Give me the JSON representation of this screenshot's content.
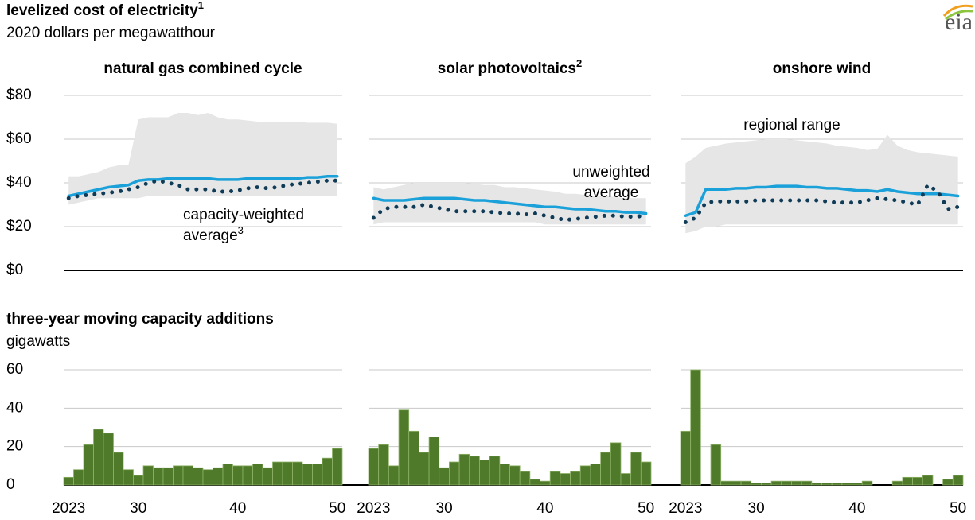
{
  "header": {
    "title": "levelized cost of electricity",
    "title_note": "1",
    "subtitle": "2020 dollars per megawatthour",
    "logo": "eia"
  },
  "lower_header": {
    "title": "three-year moving capacity additions",
    "subtitle": "gigawatts"
  },
  "chart_data": [
    {
      "type": "line",
      "title": "natural gas combined cycle",
      "xlim": [
        2022.5,
        2050.5
      ],
      "ylim": [
        0,
        80
      ],
      "yticks": [
        {
          "value": 0,
          "label": "$0"
        },
        {
          "value": 20,
          "label": "$20"
        },
        {
          "value": 40,
          "label": "$40"
        },
        {
          "value": 60,
          "label": "$60"
        },
        {
          "value": 80,
          "label": "$80"
        }
      ],
      "grid": true,
      "x": [
        2023,
        2024,
        2025,
        2026,
        2027,
        2028,
        2029,
        2030,
        2031,
        2032,
        2033,
        2034,
        2035,
        2036,
        2037,
        2038,
        2039,
        2040,
        2041,
        2042,
        2043,
        2044,
        2045,
        2046,
        2047,
        2048,
        2049,
        2050
      ],
      "range": {
        "color": "#e6e6e6",
        "upper": [
          43,
          43,
          44,
          45,
          47,
          48,
          48,
          69,
          70,
          70,
          70,
          72,
          72,
          71,
          72,
          70,
          69,
          69,
          68.5,
          68,
          68,
          68,
          68,
          68,
          67.5,
          67.5,
          67.5,
          67
        ],
        "lower": [
          30,
          31,
          32,
          33,
          33,
          33,
          33,
          33,
          34,
          34,
          34,
          34,
          34,
          34,
          34,
          34,
          34,
          34,
          34,
          34,
          34,
          34,
          34,
          34,
          34,
          34,
          34,
          34
        ]
      },
      "series": [
        {
          "color": "#1ba1d9",
          "style": "solid",
          "values": [
            34,
            35,
            36,
            37,
            38,
            38.5,
            39,
            41,
            41.5,
            41.5,
            42,
            42,
            42,
            42,
            42,
            41.5,
            41.5,
            41.5,
            42,
            42,
            42,
            42,
            42,
            42,
            42.5,
            42.5,
            43,
            43
          ]
        },
        {
          "color": "#0f3b57",
          "style": "dotted",
          "values": [
            33,
            34,
            34.5,
            35,
            35.5,
            36,
            37,
            38,
            40,
            41,
            40,
            39,
            37,
            37,
            37,
            36,
            36,
            36.5,
            37.5,
            38,
            37.5,
            38,
            39,
            39.5,
            40,
            40.5,
            41,
            41
          ]
        }
      ],
      "annotations": [
        {
          "lines": [
            "capacity-weighted",
            "average"
          ],
          "note": "3",
          "color": "#0f3b57"
        }
      ]
    },
    {
      "type": "line",
      "title": "solar photovoltaics",
      "title_note": "2",
      "xlim": [
        2022.5,
        2050.5
      ],
      "ylim": [
        0,
        80
      ],
      "yticks": [
        0,
        20,
        40,
        60,
        80
      ],
      "grid": true,
      "x": [
        2023,
        2024,
        2025,
        2026,
        2027,
        2028,
        2029,
        2030,
        2031,
        2032,
        2033,
        2034,
        2035,
        2036,
        2037,
        2038,
        2039,
        2040,
        2041,
        2042,
        2043,
        2044,
        2045,
        2046,
        2047,
        2048,
        2049,
        2050
      ],
      "range": {
        "color": "#e6e6e6",
        "upper": [
          38,
          37,
          38,
          39,
          40,
          40,
          40,
          40,
          40,
          40,
          39.5,
          39,
          39,
          38,
          38,
          37.5,
          37,
          36.5,
          36,
          35,
          35,
          34.5,
          34,
          34,
          33.5,
          33,
          33,
          33
        ],
        "lower": [
          21,
          22,
          22,
          22,
          22,
          22,
          22,
          22,
          22,
          22,
          22,
          22,
          22,
          22,
          22,
          22,
          22,
          21,
          21,
          21,
          21,
          21,
          21,
          21,
          21,
          21,
          21,
          21
        ]
      },
      "series": [
        {
          "color": "#1ba1d9",
          "style": "solid",
          "values": [
            33,
            32,
            32,
            32,
            32.5,
            33,
            33,
            33,
            33,
            32.5,
            32,
            32,
            31.5,
            31,
            30.5,
            30,
            29.5,
            29,
            29,
            28.5,
            28,
            28,
            27.5,
            27,
            27,
            26.5,
            26.5,
            26
          ]
        },
        {
          "color": "#0f3b57",
          "style": "dotted",
          "values": [
            24,
            28,
            29,
            29,
            29,
            30,
            29,
            28,
            27,
            27,
            27,
            27,
            26.5,
            26,
            26,
            25.5,
            26,
            25,
            24,
            23,
            23.5,
            24,
            24.5,
            25,
            25,
            24.5,
            24.5,
            25
          ]
        }
      ],
      "annotations": [
        {
          "lines": [
            "unweighted",
            "average"
          ],
          "color": "#1ba1d9"
        }
      ]
    },
    {
      "type": "line",
      "title": "onshore wind",
      "xlim": [
        2022.5,
        2050.5
      ],
      "ylim": [
        0,
        80
      ],
      "yticks": [
        0,
        20,
        40,
        60,
        80
      ],
      "grid": true,
      "x": [
        2023,
        2024,
        2025,
        2026,
        2027,
        2028,
        2029,
        2030,
        2031,
        2032,
        2033,
        2034,
        2035,
        2036,
        2037,
        2038,
        2039,
        2040,
        2041,
        2042,
        2043,
        2044,
        2045,
        2046,
        2047,
        2048,
        2049,
        2050
      ],
      "range": {
        "color": "#e6e6e6",
        "upper": [
          49,
          52,
          56,
          57,
          58,
          58.5,
          59,
          59.5,
          60,
          60,
          60,
          59.5,
          59,
          58.5,
          58,
          57,
          56.5,
          56,
          55,
          55.5,
          62,
          57,
          55,
          54,
          53.5,
          53,
          52.5,
          52
        ],
        "lower": [
          17,
          18,
          20,
          20,
          21,
          21,
          21,
          21,
          21,
          21,
          21,
          21,
          21,
          21,
          21,
          21,
          21,
          21,
          21,
          21,
          21,
          21,
          21,
          21,
          21,
          21,
          21,
          21
        ]
      },
      "series": [
        {
          "color": "#1ba1d9",
          "style": "solid",
          "values": [
            25,
            26.5,
            37,
            37,
            37,
            37.5,
            37.5,
            38,
            38,
            38.5,
            38.5,
            38.5,
            38,
            38,
            37.5,
            37.5,
            37,
            36.5,
            36.5,
            36,
            37,
            36,
            35.5,
            35,
            35,
            35,
            34.5,
            34
          ]
        },
        {
          "color": "#0f3b57",
          "style": "dotted",
          "values": [
            22,
            24,
            31,
            31.5,
            31.5,
            31.5,
            31.5,
            32,
            32,
            32,
            32,
            32,
            32,
            32,
            31.5,
            31,
            31,
            31,
            32,
            33,
            32.5,
            32,
            31,
            30,
            39,
            36,
            28,
            29
          ]
        }
      ],
      "annotations": [
        {
          "lines": [
            "regional range"
          ],
          "color": "#8c8c8c"
        }
      ]
    },
    {
      "type": "bar",
      "color": "#4f7a2a",
      "xlim": [
        2022.5,
        2050.5
      ],
      "ylim": [
        0,
        60
      ],
      "yticks": [
        0,
        20,
        40,
        60
      ],
      "grid": true,
      "xticks": [
        2023,
        {
          "value": 2030,
          "label": "30"
        },
        {
          "value": 2040,
          "label": "40"
        },
        {
          "value": 2050,
          "label": "50"
        }
      ],
      "x": [
        2023,
        2024,
        2025,
        2026,
        2027,
        2028,
        2029,
        2030,
        2031,
        2032,
        2033,
        2034,
        2035,
        2036,
        2037,
        2038,
        2039,
        2040,
        2041,
        2042,
        2043,
        2044,
        2045,
        2046,
        2047,
        2048,
        2049,
        2050
      ],
      "values": [
        4,
        8,
        21,
        29,
        27,
        17,
        8,
        5,
        10,
        9,
        9,
        10,
        10,
        9,
        8,
        9,
        11,
        10,
        10,
        11,
        9,
        12,
        12,
        12,
        11,
        11,
        14,
        19
      ]
    },
    {
      "type": "bar",
      "color": "#4f7a2a",
      "xlim": [
        2022.5,
        2050.5
      ],
      "ylim": [
        0,
        60
      ],
      "yticks": [
        0,
        20,
        40,
        60
      ],
      "grid": true,
      "xticks": [
        2023,
        {
          "value": 2030,
          "label": "30"
        },
        {
          "value": 2040,
          "label": "40"
        },
        {
          "value": 2050,
          "label": "50"
        }
      ],
      "x": [
        2023,
        2024,
        2025,
        2026,
        2027,
        2028,
        2029,
        2030,
        2031,
        2032,
        2033,
        2034,
        2035,
        2036,
        2037,
        2038,
        2039,
        2040,
        2041,
        2042,
        2043,
        2044,
        2045,
        2046,
        2047,
        2048,
        2049,
        2050
      ],
      "values": [
        19,
        21,
        10,
        39,
        28,
        17,
        25,
        9,
        12,
        16,
        15,
        13,
        15,
        11,
        10,
        7,
        3,
        2,
        7,
        6,
        7,
        10,
        11,
        17,
        22,
        6,
        17,
        12
      ]
    },
    {
      "type": "bar",
      "color": "#4f7a2a",
      "xlim": [
        2022.5,
        2050.5
      ],
      "ylim": [
        0,
        60
      ],
      "yticks": [
        0,
        20,
        40,
        60
      ],
      "grid": true,
      "xticks": [
        2023,
        {
          "value": 2030,
          "label": "30"
        },
        {
          "value": 2040,
          "label": "40"
        },
        {
          "value": 2050,
          "label": "50"
        }
      ],
      "x": [
        2023,
        2024,
        2025,
        2026,
        2027,
        2028,
        2029,
        2030,
        2031,
        2032,
        2033,
        2034,
        2035,
        2036,
        2037,
        2038,
        2039,
        2040,
        2041,
        2042,
        2043,
        2044,
        2045,
        2046,
        2047,
        2048,
        2049,
        2050
      ],
      "values": [
        28,
        60,
        0,
        21,
        2,
        2,
        2,
        1,
        1,
        2,
        2,
        2,
        2,
        1,
        1,
        1,
        1,
        1,
        2,
        0,
        0,
        2,
        4,
        4,
        5,
        0,
        3,
        5
      ]
    }
  ]
}
